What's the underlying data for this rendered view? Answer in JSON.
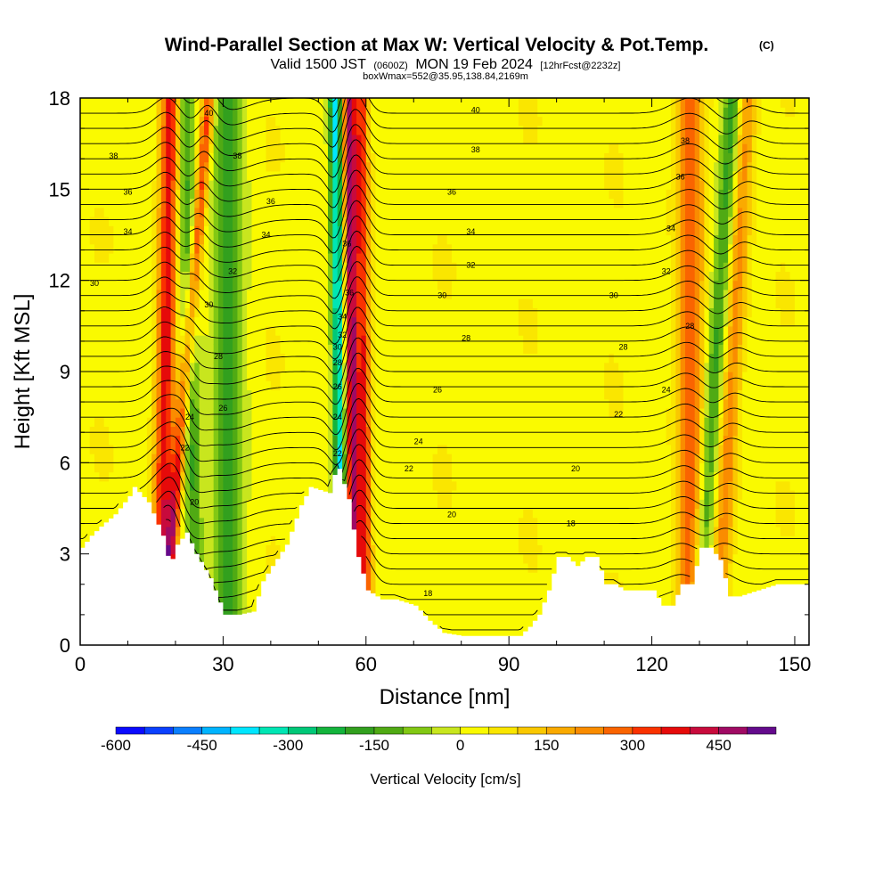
{
  "title": {
    "main": "Wind-Parallel Section at Max W: Vertical Velocity & Pot.Temp.",
    "copyright": "(C)",
    "valid_prefix": "Valid 1500 JST",
    "valid_utc": "(0600Z)",
    "valid_date": "MON 19 Feb 2024",
    "forecast": "[12hrFcst@2232z]",
    "box_info": "boxWmax=552@35.95,138.84,2169m"
  },
  "colors": {
    "terrain": "#ffffff",
    "contour_line": "#000000",
    "frame": "#000000"
  },
  "chart_data": {
    "type": "heatmap",
    "xlabel": "Distance [nm]",
    "ylabel": "Height [Kft MSL]",
    "xlim": [
      0,
      153
    ],
    "ylim": [
      0,
      18
    ],
    "x_ticks": [
      0,
      30,
      60,
      90,
      120,
      150
    ],
    "x_tick_labels": [
      "0",
      "30",
      "60",
      "90",
      "120",
      "150"
    ],
    "y_ticks": [
      0,
      3,
      6,
      9,
      12,
      15,
      18
    ],
    "y_tick_labels": [
      "0",
      "3",
      "6",
      "9",
      "12",
      "15",
      "18"
    ],
    "terrain_profile": {
      "distance_nm": [
        0,
        2,
        4,
        7,
        10,
        11,
        14,
        17,
        18.5,
        20,
        22,
        24,
        27,
        30,
        33,
        36,
        38,
        40,
        43,
        46,
        48,
        50,
        52,
        53,
        54,
        55,
        56,
        57,
        58,
        60,
        63,
        66,
        70,
        73,
        76,
        80,
        84,
        88,
        92,
        94,
        96,
        98,
        100,
        102,
        104,
        106,
        108,
        110,
        112,
        114,
        116,
        118,
        120,
        122,
        124,
        126,
        128,
        130,
        132,
        134,
        136,
        138,
        142,
        146,
        150,
        153
      ],
      "height_kft": [
        3.2,
        3.6,
        3.9,
        4.3,
        4.9,
        5.2,
        4.7,
        3.6,
        2.6,
        3.3,
        3.7,
        3.0,
        2.2,
        1.0,
        1.0,
        1.1,
        2.1,
        2.6,
        3.3,
        4.6,
        5.2,
        5.1,
        5.0,
        5.6,
        5.8,
        5.3,
        4.8,
        3.8,
        2.9,
        1.8,
        1.5,
        1.5,
        1.3,
        0.8,
        0.4,
        0.3,
        0.3,
        0.3,
        0.3,
        0.6,
        1.0,
        1.8,
        2.9,
        2.9,
        2.6,
        2.9,
        2.9,
        2.0,
        2.0,
        1.8,
        1.8,
        1.8,
        1.8,
        1.3,
        1.3,
        2.0,
        2.0,
        3.2,
        3.2,
        2.8,
        1.6,
        1.6,
        1.8,
        2.0,
        2.0,
        2.0
      ]
    },
    "vertical_velocity_colorbar": {
      "title": "Vertical Velocity [cm/s]",
      "levels": [
        -600,
        -550,
        -500,
        -450,
        -400,
        -350,
        -300,
        -250,
        -200,
        -150,
        -100,
        -50,
        0,
        50,
        100,
        150,
        200,
        250,
        300,
        350,
        400,
        450,
        500
      ],
      "colors": [
        "#0a0aff",
        "#0a40ff",
        "#0a7fff",
        "#00b4ff",
        "#00e6ff",
        "#00e6b4",
        "#00c878",
        "#14b43c",
        "#32a01e",
        "#50aa14",
        "#82c814",
        "#c8e61e",
        "#fafa00",
        "#fae600",
        "#fac800",
        "#faaa00",
        "#fa8c00",
        "#fa6400",
        "#fa3200",
        "#e60a0a",
        "#c80a3c",
        "#a00a64",
        "#640a8c"
      ],
      "tick_values": [
        -600,
        -450,
        -300,
        -150,
        0,
        150,
        300,
        450
      ],
      "tick_labels": [
        "-600",
        "-450",
        "-300",
        "-150",
        "0",
        "150",
        "300",
        "450"
      ]
    },
    "velocity_features": [
      {
        "kind": "updraft",
        "x_top": 19,
        "x_bottom": 17,
        "width_nm": 3,
        "max_cms": 350
      },
      {
        "kind": "downdraft",
        "x_top": 22,
        "x_bottom": 24,
        "width_nm": 3,
        "max_cms": -200
      },
      {
        "kind": "updraft",
        "x_top": 27,
        "x_bottom": 18,
        "width_nm": 2,
        "max_cms": 300
      },
      {
        "kind": "downdraft",
        "x_top": 31,
        "x_bottom": 31,
        "width_nm": 5,
        "max_cms": -200
      },
      {
        "kind": "downdraft",
        "x_top": 53.5,
        "x_bottom": 55,
        "width_nm": 2,
        "max_cms": -400
      },
      {
        "kind": "updraft",
        "x_top": 56.5,
        "x_bottom": 57.5,
        "width_nm": 2,
        "max_cms": 450
      },
      {
        "kind": "updraft",
        "x_top": 59,
        "x_bottom": 60,
        "width_nm": 2,
        "max_cms": 300
      },
      {
        "kind": "downdraft",
        "x_top": 137,
        "x_bottom": 130,
        "width_nm": 3,
        "max_cms": -200
      },
      {
        "kind": "updraft",
        "x_top": 140,
        "x_bottom": 134,
        "width_nm": 3,
        "max_cms": 200
      },
      {
        "kind": "updraft",
        "x_top": 128,
        "x_bottom": 128,
        "width_nm": 4,
        "max_cms": 250
      }
    ],
    "potential_temperature_contours": [
      {
        "label": "18",
        "label_positions": [
          [
            73,
            1.7
          ],
          [
            103,
            4.0
          ]
        ]
      },
      {
        "label": "20",
        "label_positions": [
          [
            24,
            4.7
          ],
          [
            78,
            4.3
          ],
          [
            104,
            5.8
          ]
        ]
      },
      {
        "label": "22",
        "label_positions": [
          [
            22,
            6.5
          ],
          [
            54,
            6.3
          ],
          [
            69,
            5.8
          ],
          [
            113,
            7.6
          ]
        ]
      },
      {
        "label": "24",
        "label_positions": [
          [
            23,
            7.5
          ],
          [
            54,
            7.5
          ],
          [
            71,
            6.7
          ],
          [
            123,
            8.4
          ]
        ]
      },
      {
        "label": "26",
        "label_positions": [
          [
            30,
            7.8
          ],
          [
            54,
            8.5
          ],
          [
            75,
            8.4
          ]
        ]
      },
      {
        "label": "28",
        "label_positions": [
          [
            29,
            9.5
          ],
          [
            54,
            9.3
          ],
          [
            81,
            10.1
          ],
          [
            114,
            9.8
          ],
          [
            128,
            10.5
          ]
        ]
      },
      {
        "label": "30",
        "label_positions": [
          [
            3,
            11.9
          ],
          [
            27,
            11.2
          ],
          [
            54,
            9.8
          ],
          [
            76,
            11.5
          ],
          [
            112,
            11.5
          ]
        ]
      },
      {
        "label": "32",
        "label_positions": [
          [
            32,
            12.3
          ],
          [
            55,
            10.2
          ],
          [
            82,
            12.5
          ],
          [
            123,
            12.3
          ]
        ]
      },
      {
        "label": "34",
        "label_positions": [
          [
            10,
            13.6
          ],
          [
            39,
            13.5
          ],
          [
            55,
            10.8
          ],
          [
            82,
            13.6
          ],
          [
            124,
            13.7
          ]
        ]
      },
      {
        "label": "36",
        "label_positions": [
          [
            10,
            14.9
          ],
          [
            40,
            14.6
          ],
          [
            56,
            13.2
          ],
          [
            56.5,
            11.6
          ],
          [
            78,
            14.9
          ],
          [
            126,
            15.4
          ]
        ]
      },
      {
        "label": "38",
        "label_positions": [
          [
            7,
            16.1
          ],
          [
            33,
            16.1
          ],
          [
            83,
            16.3
          ],
          [
            127,
            16.6
          ]
        ]
      },
      {
        "label": "40",
        "label_positions": [
          [
            27,
            17.5
          ],
          [
            83,
            17.6
          ]
        ]
      }
    ]
  }
}
